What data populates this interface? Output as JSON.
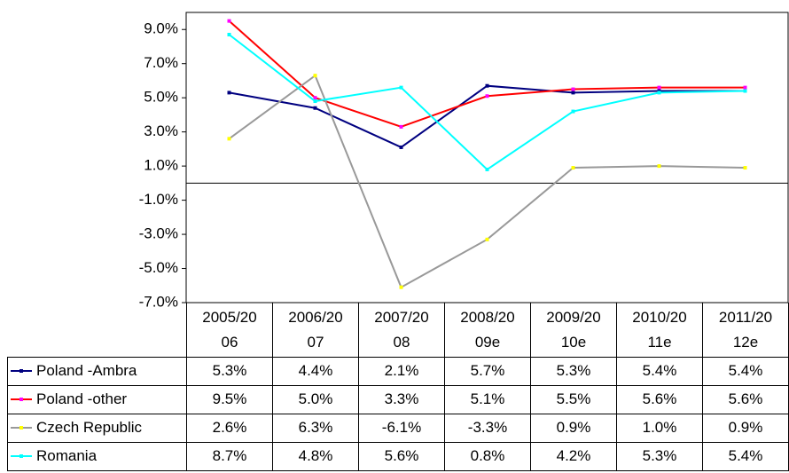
{
  "chart_data": {
    "type": "line",
    "categories": [
      "2005/2006",
      "2006/2007",
      "2007/2008",
      "2008/2009e",
      "2009/2010e",
      "2010/2011e",
      "2011/2012e"
    ],
    "ylim": [
      -7,
      10
    ],
    "yticks": [
      {
        "value": -7,
        "label": "-7.0%"
      },
      {
        "value": -5,
        "label": "-5.0%"
      },
      {
        "value": -3,
        "label": "-3.0%"
      },
      {
        "value": -1,
        "label": "-1.0%"
      },
      {
        "value": 1,
        "label": "1.0%"
      },
      {
        "value": 3,
        "label": "3.0%"
      },
      {
        "value": 5,
        "label": "5.0%"
      },
      {
        "value": 7,
        "label": "7.0%"
      },
      {
        "value": 9,
        "label": "9.0%"
      }
    ],
    "series": [
      {
        "name": "Poland -Ambra",
        "color": "#000080",
        "marker_color": "#000080",
        "values": [
          5.3,
          4.4,
          2.1,
          5.7,
          5.3,
          5.4,
          5.4
        ],
        "value_labels": [
          "5.3%",
          "4.4%",
          "2.1%",
          "5.7%",
          "5.3%",
          "5.4%",
          "5.4%"
        ]
      },
      {
        "name": "Poland -other",
        "color": "#ff0000",
        "marker_color": "#ff00ff",
        "values": [
          9.5,
          5.0,
          3.3,
          5.1,
          5.5,
          5.6,
          5.6
        ],
        "value_labels": [
          "9.5%",
          "5.0%",
          "3.3%",
          "5.1%",
          "5.5%",
          "5.6%",
          "5.6%"
        ]
      },
      {
        "name": "Czech Republic",
        "color": "#999999",
        "marker_color": "#ffff00",
        "values": [
          2.6,
          6.3,
          -6.1,
          -3.3,
          0.9,
          1.0,
          0.9
        ],
        "value_labels": [
          "2.6%",
          "6.3%",
          "-6.1%",
          "-3.3%",
          "0.9%",
          "1.0%",
          "0.9%"
        ]
      },
      {
        "name": "Romania",
        "color": "#00ffff",
        "marker_color": "#00ffff",
        "values": [
          8.7,
          4.8,
          5.6,
          0.8,
          4.2,
          5.3,
          5.4
        ],
        "value_labels": [
          "8.7%",
          "4.8%",
          "5.6%",
          "0.8%",
          "4.2%",
          "5.3%",
          "5.4%"
        ]
      }
    ]
  }
}
